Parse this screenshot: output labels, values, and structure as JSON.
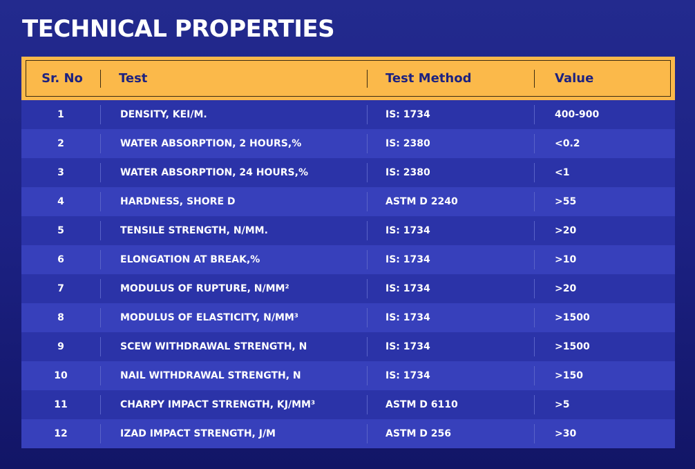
{
  "title": "TECHNICAL PROPERTIES",
  "colors": {
    "background": "#1c2183",
    "header_bg": "#fbb94a",
    "header_text": "#1d2280",
    "row_odd": "#2b33a8",
    "row_even": "#3740bb",
    "text": "#ffffff"
  },
  "table": {
    "headers": [
      "Sr. No",
      "Test",
      "Test Method",
      "Value"
    ],
    "rows": [
      [
        "1",
        "DENSITY, KEI/M.",
        "IS: 1734",
        "400-900"
      ],
      [
        "2",
        "WATER ABSORPTION, 2 HOURS,%",
        "IS: 2380",
        "<0.2"
      ],
      [
        "3",
        "WATER ABSORPTION, 24 HOURS,%",
        "IS: 2380",
        "<1"
      ],
      [
        "4",
        "HARDNESS, SHORE D",
        "ASTM D 2240",
        ">55"
      ],
      [
        "5",
        "TENSILE STRENGTH, N/MM.",
        "IS: 1734",
        ">20"
      ],
      [
        "6",
        "ELONGATION AT BREAK,%",
        "IS: 1734",
        ">10"
      ],
      [
        "7",
        "MODULUS OF RUPTURE, N/MM²",
        "IS: 1734",
        ">20"
      ],
      [
        "8",
        "MODULUS OF ELASTICITY, N/MM³",
        "IS: 1734",
        ">1500"
      ],
      [
        "9",
        "SCEW WITHDRAWAL STRENGTH, N",
        "IS: 1734",
        ">1500"
      ],
      [
        "10",
        "NAIL WITHDRAWAL STRENGTH, N",
        "IS: 1734",
        ">150"
      ],
      [
        "11",
        "CHARPY IMPACT STRENGTH, KJ/MM³",
        "ASTM D 6110",
        ">5"
      ],
      [
        "12",
        "IZAD IMPACT STRENGTH, J/M",
        "ASTM D 256",
        ">30"
      ]
    ]
  }
}
